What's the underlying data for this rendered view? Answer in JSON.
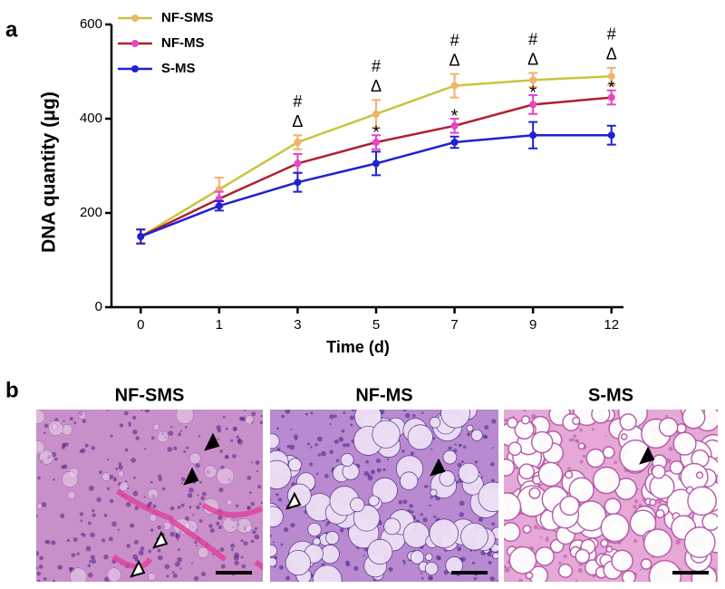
{
  "chart_data": {
    "type": "line",
    "panel_label": "a",
    "categories": [
      "0",
      "1",
      "3",
      "5",
      "7",
      "9",
      "12"
    ],
    "x_label": "Time (d)",
    "y_label": "DNA quantity (μg)",
    "ylim": [
      0,
      600
    ],
    "yticks": [
      0,
      200,
      400,
      600
    ],
    "legend": "top-left",
    "series": [
      {
        "name": "NF-SMS",
        "color": "#c9c440",
        "marker_color": "#f2b26a",
        "values": [
          150,
          250,
          350,
          410,
          470,
          482,
          490
        ],
        "errors": [
          15,
          25,
          15,
          30,
          25,
          15,
          18
        ]
      },
      {
        "name": "NF-MS",
        "color": "#b0202e",
        "marker_color": "#e845c4",
        "values": [
          150,
          230,
          305,
          350,
          385,
          430,
          445
        ],
        "errors": [
          15,
          15,
          20,
          15,
          15,
          20,
          15
        ]
      },
      {
        "name": "S-MS",
        "color": "#1f22d2",
        "marker_color": "#1f22d2",
        "values": [
          150,
          215,
          265,
          305,
          350,
          365,
          365
        ],
        "errors": [
          15,
          10,
          20,
          25,
          12,
          28,
          20
        ]
      }
    ],
    "annotations": [
      {
        "x": "3",
        "series": "NF-SMS",
        "text": [
          "#",
          "Δ"
        ]
      },
      {
        "x": "5",
        "series": "NF-SMS",
        "text": [
          "#",
          "Δ"
        ]
      },
      {
        "x": "7",
        "series": "NF-SMS",
        "text": [
          "#",
          "Δ"
        ]
      },
      {
        "x": "9",
        "series": "NF-SMS",
        "text": [
          "#",
          "Δ"
        ]
      },
      {
        "x": "12",
        "series": "NF-SMS",
        "text": [
          "#",
          "Δ"
        ]
      },
      {
        "x": "5",
        "series": "NF-MS",
        "text": [
          "*"
        ]
      },
      {
        "x": "7",
        "series": "NF-MS",
        "text": [
          "*"
        ]
      },
      {
        "x": "9",
        "series": "NF-MS",
        "text": [
          "*"
        ]
      },
      {
        "x": "12",
        "series": "NF-MS",
        "text": [
          "*"
        ]
      }
    ]
  },
  "panel_b": {
    "label": "b",
    "titles": [
      "NF-SMS",
      "NF-MS",
      "S-MS"
    ]
  }
}
